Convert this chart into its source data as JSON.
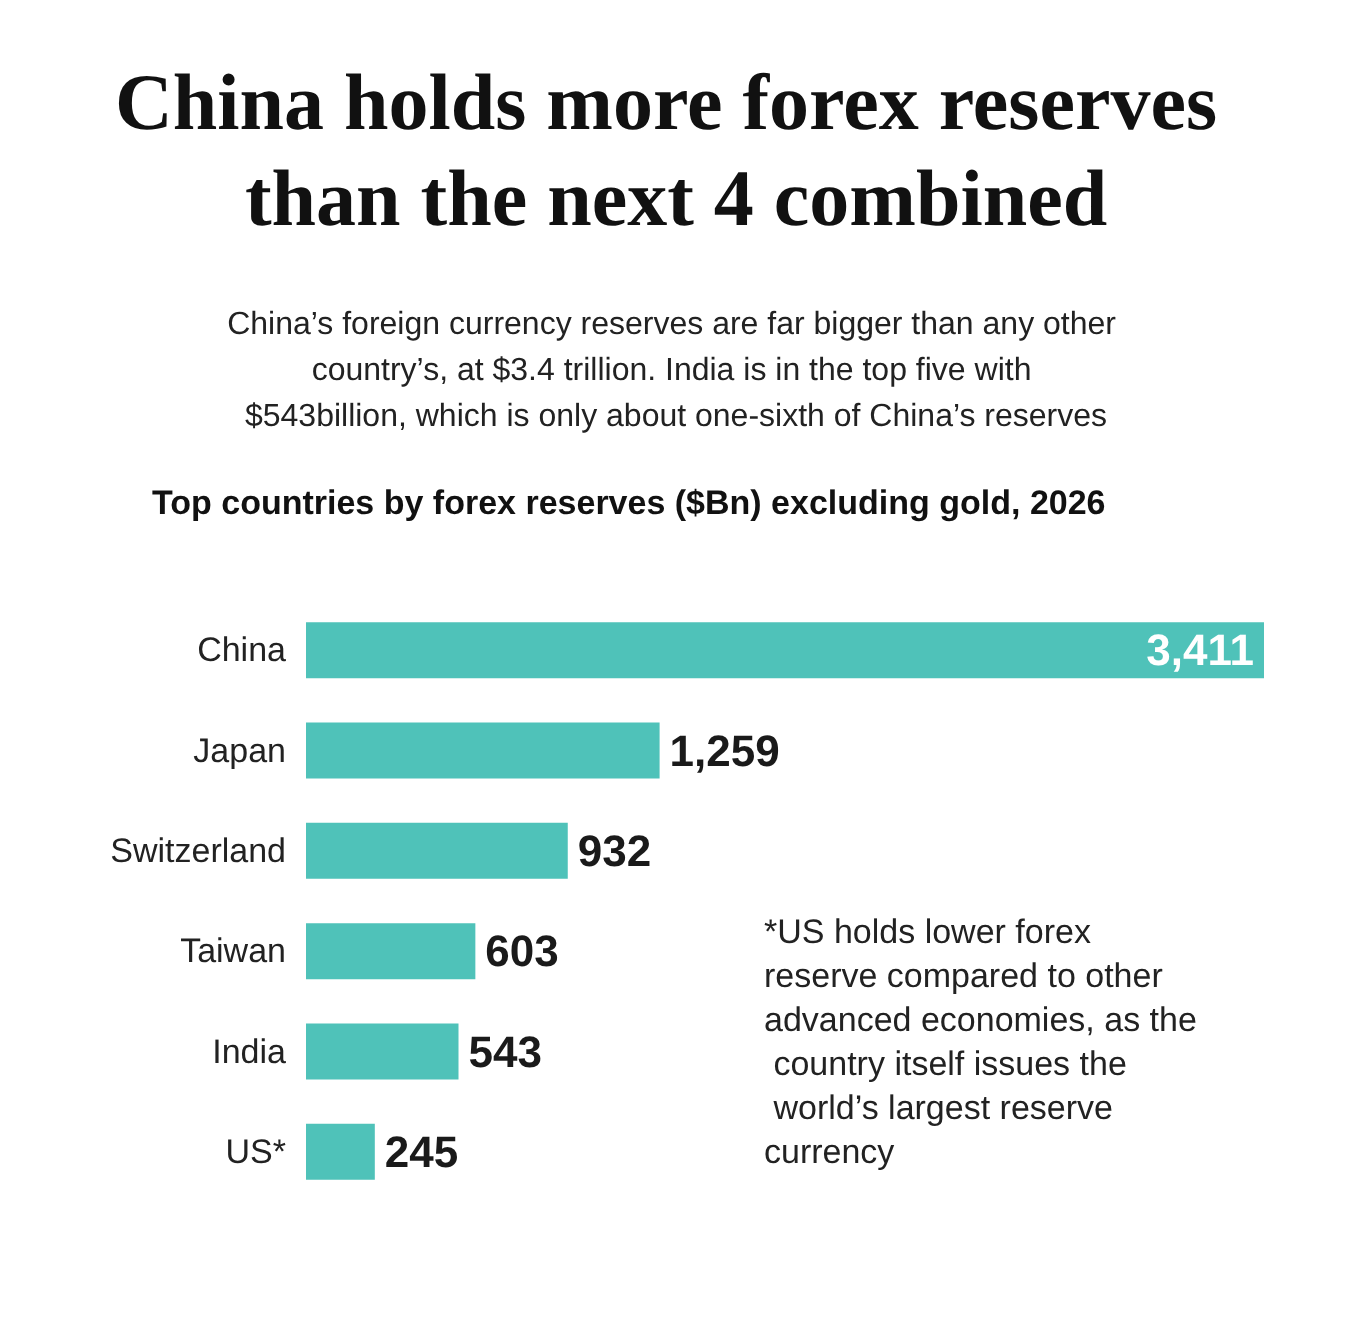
{
  "chart_data": {
    "type": "bar",
    "orientation": "horizontal",
    "title": "China holds more forex reserves than the next 4 combined",
    "subtitle": "China’s foreign currency reserves are far bigger than any other country’s, at $3.4 trillion. India is in the top five with $543billion, which is only about one-sixth of China’s reserves",
    "annotations": [
      "Top countries by forex reserves ($Bn) excluding gold, 2026",
      "*US holds lower forex reserve compared to other advanced economies, as the country itself issues the world’s largest reserve currency"
    ],
    "categories": [
      "China",
      "Japan",
      "Switzerland",
      "Taiwan",
      "India",
      "US*"
    ],
    "values": [
      3411,
      1259,
      932,
      603,
      543,
      245
    ],
    "value_labels": [
      "3,411",
      "1,259",
      "932",
      "603",
      "543",
      "245"
    ],
    "color": "#4fc2b9",
    "xlim": [
      0,
      3411
    ]
  }
}
